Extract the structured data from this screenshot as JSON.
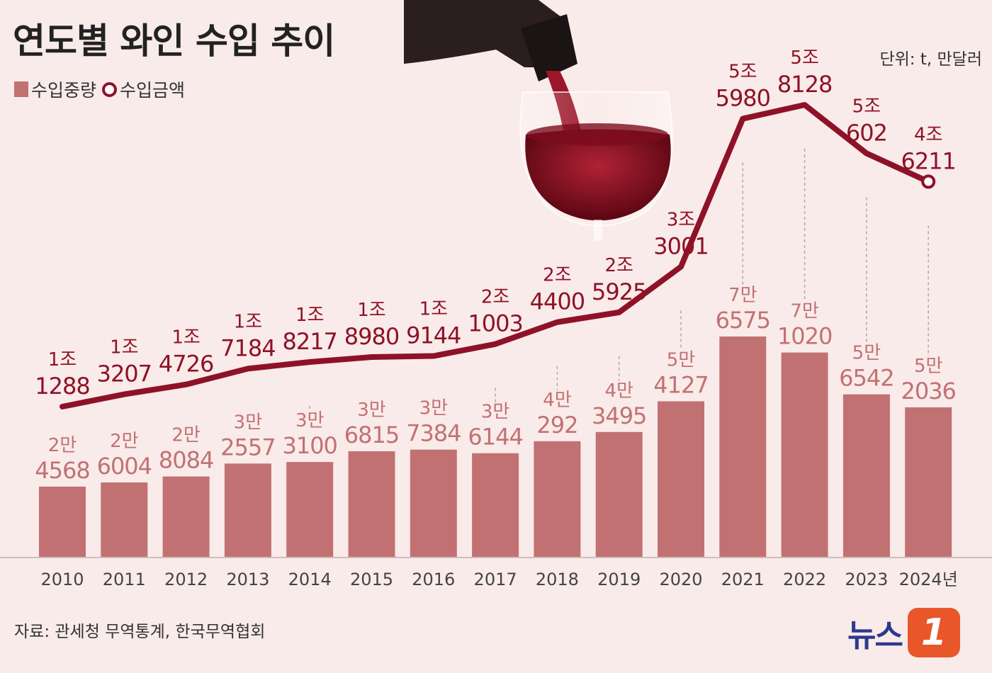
{
  "title": "연도별 와인 수입 추이",
  "legend": {
    "volume_label": "수입중량",
    "amount_label": "수입금액"
  },
  "unit": "단위: t, 만달러",
  "source": "자료: 관세청 무역통계, 한국무역협회",
  "logo": {
    "text": "뉴스",
    "badge": "1"
  },
  "colors": {
    "bar": "#c27173",
    "line": "#8e1227",
    "background": "#f9ebe9",
    "bar_label": "#c27173"
  },
  "chart_data": {
    "type": "bar",
    "categories": [
      "2010",
      "2011",
      "2012",
      "2013",
      "2014",
      "2015",
      "2016",
      "2017",
      "2018",
      "2019",
      "2020",
      "2021",
      "2022",
      "2023",
      "2024년"
    ],
    "series": [
      {
        "name": "수입중량",
        "type": "bar",
        "values": [
          24568,
          26004,
          28084,
          32557,
          33100,
          36815,
          37384,
          36144,
          40292,
          43495,
          54127,
          76575,
          71020,
          56542,
          52036
        ],
        "labels": [
          [
            "2만",
            "4568"
          ],
          [
            "2만",
            "6004"
          ],
          [
            "2만",
            "8084"
          ],
          [
            "3만",
            "2557"
          ],
          [
            "3만",
            "3100"
          ],
          [
            "3만",
            "6815"
          ],
          [
            "3만",
            "7384"
          ],
          [
            "3만",
            "6144"
          ],
          [
            "4만",
            "292"
          ],
          [
            "4만",
            "3495"
          ],
          [
            "5만",
            "4127"
          ],
          [
            "7만",
            "6575"
          ],
          [
            "7만",
            "1020"
          ],
          [
            "5만",
            "6542"
          ],
          [
            "5만",
            "2036"
          ]
        ]
      },
      {
        "name": "수입금액",
        "type": "line",
        "values": [
          11288,
          13207,
          14726,
          17184,
          18217,
          18980,
          19144,
          21003,
          24400,
          25925,
          33001,
          55980,
          58128,
          50602,
          46211
        ],
        "labels": [
          [
            "1조",
            "1288"
          ],
          [
            "1조",
            "3207"
          ],
          [
            "1조",
            "4726"
          ],
          [
            "1조",
            "7184"
          ],
          [
            "1조",
            "8217"
          ],
          [
            "1조",
            "8980"
          ],
          [
            "1조",
            "9144"
          ],
          [
            "2조",
            "1003"
          ],
          [
            "2조",
            "4400"
          ],
          [
            "2조",
            "5925"
          ],
          [
            "3조",
            "3001"
          ],
          [
            "5조",
            "5980"
          ],
          [
            "5조",
            "8128"
          ],
          [
            "5조",
            "602"
          ],
          [
            "4조",
            "6211"
          ]
        ]
      }
    ]
  }
}
